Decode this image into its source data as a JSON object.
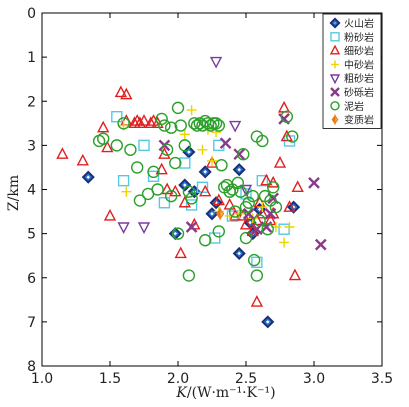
{
  "chart_data": {
    "type": "scatter",
    "xlabel_italic": "K",
    "xlabel_rest": "/(W·m⁻¹·K⁻¹)",
    "ylabel": "Z/km",
    "xlim": [
      1.0,
      3.5
    ],
    "ylim": [
      0,
      8
    ],
    "x_ticks": [
      "1.0",
      "1.5",
      "2.0",
      "2.5",
      "3.0",
      "3.5"
    ],
    "y_ticks": [
      "0",
      "1",
      "2",
      "3",
      "4",
      "5",
      "6",
      "7",
      "8"
    ],
    "grid": false,
    "legend_position": "top-right",
    "series": [
      {
        "name": "火山岩",
        "marker": "diamond",
        "color": "#1f6fd0",
        "edge2": "#16307a",
        "points": [
          [
            1.34,
            3.72
          ],
          [
            2.05,
            3.9
          ],
          [
            2.08,
            3.15
          ],
          [
            2.12,
            4.05
          ],
          [
            2.2,
            3.6
          ],
          [
            2.28,
            4.3
          ],
          [
            2.45,
            5.45
          ],
          [
            2.53,
            4.75
          ],
          [
            2.55,
            5.0
          ],
          [
            2.6,
            4.45
          ],
          [
            2.66,
            7.0
          ],
          [
            2.85,
            4.4
          ],
          [
            1.98,
            5.0
          ],
          [
            2.45,
            3.55
          ],
          [
            2.25,
            4.55
          ]
        ]
      },
      {
        "name": "粉砂岩",
        "marker": "square",
        "color": "#55c8e8",
        "points": [
          [
            1.55,
            2.35
          ],
          [
            1.6,
            3.8
          ],
          [
            1.82,
            3.7
          ],
          [
            1.9,
            4.3
          ],
          [
            2.05,
            3.4
          ],
          [
            2.1,
            4.35
          ],
          [
            2.18,
            3.95
          ],
          [
            2.27,
            5.1
          ],
          [
            2.4,
            4.6
          ],
          [
            2.58,
            5.65
          ],
          [
            2.62,
            3.8
          ],
          [
            2.78,
            4.9
          ],
          [
            2.82,
            2.9
          ],
          [
            2.5,
            4.1
          ],
          [
            1.75,
            3.0
          ],
          [
            2.3,
            3.0
          ]
        ]
      },
      {
        "name": "细砂岩",
        "marker": "triangle",
        "color": "#e02020",
        "points": [
          [
            1.15,
            3.2
          ],
          [
            1.3,
            3.35
          ],
          [
            1.45,
            2.6
          ],
          [
            1.48,
            3.05
          ],
          [
            1.5,
            4.6
          ],
          [
            1.58,
            1.8
          ],
          [
            1.62,
            1.85
          ],
          [
            1.62,
            2.45
          ],
          [
            1.68,
            2.5
          ],
          [
            1.7,
            2.45
          ],
          [
            1.72,
            2.5
          ],
          [
            1.75,
            2.45
          ],
          [
            1.8,
            2.5
          ],
          [
            1.82,
            2.45
          ],
          [
            1.85,
            2.5
          ],
          [
            1.88,
            3.55
          ],
          [
            1.9,
            3.2
          ],
          [
            1.92,
            4.0
          ],
          [
            1.98,
            4.05
          ],
          [
            2.02,
            5.45
          ],
          [
            2.05,
            4.3
          ],
          [
            2.12,
            4.8
          ],
          [
            2.2,
            4.05
          ],
          [
            2.25,
            3.4
          ],
          [
            2.3,
            4.25
          ],
          [
            2.38,
            4.35
          ],
          [
            2.42,
            4.6
          ],
          [
            2.48,
            4.6
          ],
          [
            2.5,
            4.8
          ],
          [
            2.55,
            4.95
          ],
          [
            2.58,
            4.7
          ],
          [
            2.6,
            4.3
          ],
          [
            2.62,
            4.55
          ],
          [
            2.65,
            3.8
          ],
          [
            2.68,
            4.7
          ],
          [
            2.7,
            3.85
          ],
          [
            2.75,
            3.4
          ],
          [
            2.78,
            2.15
          ],
          [
            2.8,
            2.8
          ],
          [
            2.82,
            4.4
          ],
          [
            2.86,
            5.95
          ],
          [
            2.88,
            3.95
          ],
          [
            2.7,
            4.55
          ],
          [
            2.58,
            6.55
          ]
        ]
      },
      {
        "name": "中砂岩",
        "marker": "plus",
        "color": "#ecd400",
        "points": [
          [
            1.6,
            2.55
          ],
          [
            1.62,
            4.05
          ],
          [
            2.05,
            2.75
          ],
          [
            2.1,
            2.2
          ],
          [
            2.18,
            3.1
          ],
          [
            2.22,
            2.65
          ],
          [
            2.25,
            3.35
          ],
          [
            2.3,
            4.5
          ],
          [
            2.38,
            4.6
          ],
          [
            2.45,
            4.55
          ],
          [
            2.55,
            4.65
          ],
          [
            2.62,
            4.4
          ],
          [
            2.72,
            4.85
          ],
          [
            2.78,
            5.2
          ],
          [
            2.82,
            4.85
          ],
          [
            2.28,
            2.7
          ]
        ]
      },
      {
        "name": "粗砂岩",
        "marker": "invtriangle",
        "color": "#7a3aa0",
        "points": [
          [
            1.6,
            4.85
          ],
          [
            1.75,
            4.85
          ],
          [
            2.28,
            1.1
          ],
          [
            2.42,
            2.55
          ],
          [
            2.5,
            4.0
          ]
        ]
      },
      {
        "name": "砂砾岩",
        "marker": "x",
        "color": "#8a3a8a",
        "points": [
          [
            1.9,
            3.0
          ],
          [
            2.1,
            4.85
          ],
          [
            2.35,
            2.95
          ],
          [
            2.45,
            3.2
          ],
          [
            2.52,
            4.55
          ],
          [
            2.58,
            4.9
          ],
          [
            2.65,
            4.85
          ],
          [
            2.7,
            4.2
          ],
          [
            2.78,
            2.4
          ],
          [
            3.0,
            3.85
          ],
          [
            3.05,
            5.25
          ],
          [
            2.68,
            4.55
          ]
        ]
      },
      {
        "name": "泥岩",
        "marker": "circle",
        "color": "#2aa02a",
        "points": [
          [
            1.42,
            2.9
          ],
          [
            1.45,
            2.85
          ],
          [
            1.55,
            3.0
          ],
          [
            1.6,
            2.5
          ],
          [
            1.65,
            3.1
          ],
          [
            1.7,
            3.5
          ],
          [
            1.72,
            4.25
          ],
          [
            1.78,
            4.1
          ],
          [
            1.82,
            3.6
          ],
          [
            1.85,
            4.0
          ],
          [
            1.88,
            2.4
          ],
          [
            1.9,
            2.55
          ],
          [
            1.92,
            3.1
          ],
          [
            1.95,
            2.6
          ],
          [
            1.98,
            3.4
          ],
          [
            2.0,
            2.15
          ],
          [
            2.02,
            2.55
          ],
          [
            2.05,
            3.0
          ],
          [
            2.08,
            4.05
          ],
          [
            2.1,
            4.2
          ],
          [
            2.12,
            2.5
          ],
          [
            2.14,
            2.55
          ],
          [
            2.16,
            2.5
          ],
          [
            2.18,
            2.55
          ],
          [
            2.2,
            2.45
          ],
          [
            2.22,
            2.5
          ],
          [
            2.24,
            2.55
          ],
          [
            2.26,
            2.5
          ],
          [
            2.28,
            2.5
          ],
          [
            2.3,
            2.55
          ],
          [
            2.32,
            3.45
          ],
          [
            2.34,
            3.95
          ],
          [
            2.36,
            3.9
          ],
          [
            2.38,
            4.05
          ],
          [
            2.4,
            4.0
          ],
          [
            2.42,
            4.5
          ],
          [
            2.44,
            3.85
          ],
          [
            2.46,
            4.05
          ],
          [
            2.48,
            3.2
          ],
          [
            2.5,
            4.4
          ],
          [
            2.52,
            4.3
          ],
          [
            2.55,
            4.15
          ],
          [
            2.56,
            5.6
          ],
          [
            2.58,
            5.95
          ],
          [
            2.6,
            4.7
          ],
          [
            2.62,
            2.9
          ],
          [
            2.64,
            4.15
          ],
          [
            2.66,
            4.9
          ],
          [
            2.68,
            4.25
          ],
          [
            2.7,
            3.95
          ],
          [
            2.72,
            4.4
          ],
          [
            2.8,
            2.35
          ],
          [
            2.84,
            2.8
          ],
          [
            2.0,
            5.0
          ],
          [
            2.08,
            5.95
          ],
          [
            2.5,
            5.1
          ],
          [
            2.2,
            5.15
          ],
          [
            1.95,
            4.15
          ],
          [
            2.3,
            4.95
          ],
          [
            2.58,
            2.8
          ]
        ]
      },
      {
        "name": "变质岩",
        "marker": "halfdiamond",
        "color": "#e87a10",
        "points": [
          [
            2.31,
            4.55
          ]
        ]
      }
    ]
  }
}
